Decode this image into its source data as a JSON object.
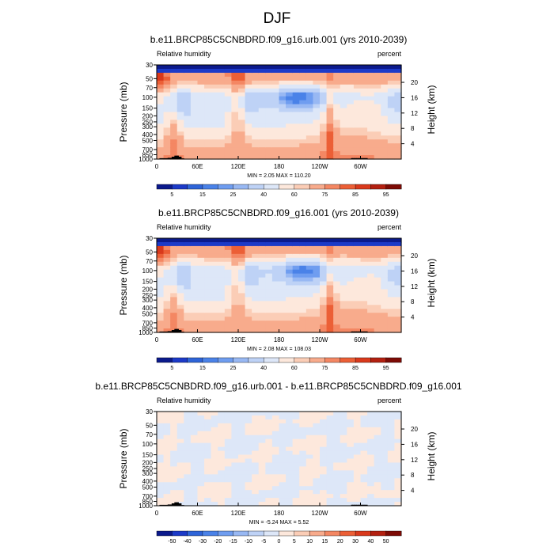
{
  "figure": {
    "title": "DJF"
  },
  "colors": {
    "rh_levels": [
      "#0b1a8c",
      "#1c3ac8",
      "#2e64d8",
      "#4a82e8",
      "#6f9df0",
      "#98b8f3",
      "#bed2f6",
      "#dde7f8",
      "#fde8dc",
      "#fbcdb6",
      "#f8ab8c",
      "#f48763",
      "#ec5f36",
      "#d9391c",
      "#b32010",
      "#7d0b05"
    ],
    "diff_levels": [
      "#0b1a8c",
      "#1c3ac8",
      "#2e64d8",
      "#4a82e8",
      "#6f9df0",
      "#98b8f3",
      "#bed2f6",
      "#dde7f8",
      "#fde8dc",
      "#fbcdb6",
      "#f8ab8c",
      "#f48763",
      "#ec5f36",
      "#d9391c",
      "#b32010",
      "#7d0b05"
    ],
    "terrain": "#000000"
  },
  "panels": [
    {
      "title": "b.e11.BRCP85C5CNBDRD.f09_g16.urb.001 (yrs 2010-2039)",
      "left_label": "Relative humidity",
      "right_label": "percent",
      "stats": "MIN =  2.05  MAX = 110.20",
      "kind": "rh"
    },
    {
      "title": "b.e11.BRCP85C5CNBDRD.f09_g16.001 (yrs 2010-2039)",
      "left_label": "Relative humidity",
      "right_label": "percent",
      "stats": "MIN =  2.08  MAX = 108.03",
      "kind": "rh"
    },
    {
      "title": "b.e11.BRCP85C5CNBDRD.f09_g16.urb.001 - b.e11.BRCP85C5CNBDRD.f09_g16.001",
      "left_label": "Relative humidity",
      "right_label": "percent",
      "stats": "MIN = -5.24  MAX =  5.52",
      "kind": "diff"
    }
  ],
  "chart_data": {
    "type": "heatmap",
    "axes": {
      "ylabel": "Pressure (mb)",
      "y2label": "Height (km)",
      "x_ticks": [
        "0",
        "60E",
        "120E",
        "180",
        "120W",
        "60W"
      ],
      "x_tick_values": [
        0,
        60,
        120,
        180,
        240,
        300
      ],
      "xlim": [
        0,
        360
      ],
      "y_ticks": [
        "1000",
        "850",
        "700",
        "500",
        "400",
        "300",
        "250",
        "200",
        "150",
        "100",
        "70",
        "50",
        "30"
      ],
      "y_tick_values": [
        1000,
        850,
        700,
        500,
        400,
        300,
        250,
        200,
        150,
        100,
        70,
        50,
        30
      ],
      "ylim": [
        1000,
        30
      ],
      "y_scale": "log",
      "y2_ticks": [
        "4",
        "8",
        "12",
        "16",
        "20"
      ],
      "y2_tick_values": [
        4,
        8,
        12,
        16,
        20
      ]
    },
    "rh_colorbar": {
      "labels": [
        "5",
        "15",
        "25",
        "40",
        "60",
        "75",
        "85",
        "95"
      ],
      "bins": 16
    },
    "diff_colorbar": {
      "labels": [
        "-50",
        "-40",
        "-30",
        "-20",
        "-15",
        "-10",
        "-5",
        "0",
        "5",
        "10",
        "15",
        "20",
        "30",
        "40",
        "50"
      ],
      "bins": 16
    }
  }
}
